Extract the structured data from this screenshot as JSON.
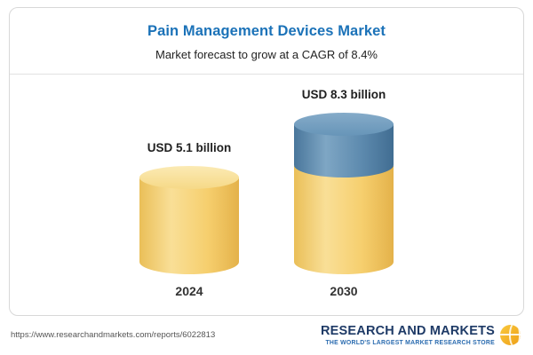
{
  "header": {
    "title": "Pain Management Devices Market",
    "subtitle": "Market forecast to grow at a CAGR of 8.4%"
  },
  "chart_data": {
    "type": "bar",
    "categories": [
      "2024",
      "2030"
    ],
    "values": [
      5.1,
      8.3
    ],
    "value_labels": [
      "USD 5.1 billion",
      "USD 8.3 billion"
    ],
    "unit": "USD billion",
    "title": "Pain Management Devices Market",
    "subtitle": "Market forecast to grow at a CAGR of 8.4%",
    "cagr": "8.4%",
    "legend_position": "none",
    "grid": false,
    "colors": {
      "base_segment": "#F6CF6E",
      "growth_segment": "#5D8AAE",
      "title_accent": "#1B72B8"
    }
  },
  "footer": {
    "url": "https://www.researchandmarkets.com/reports/6022813",
    "logo_line1": "RESEARCH AND MARKETS",
    "logo_line2": "THE WORLD'S LARGEST MARKET RESEARCH STORE"
  }
}
